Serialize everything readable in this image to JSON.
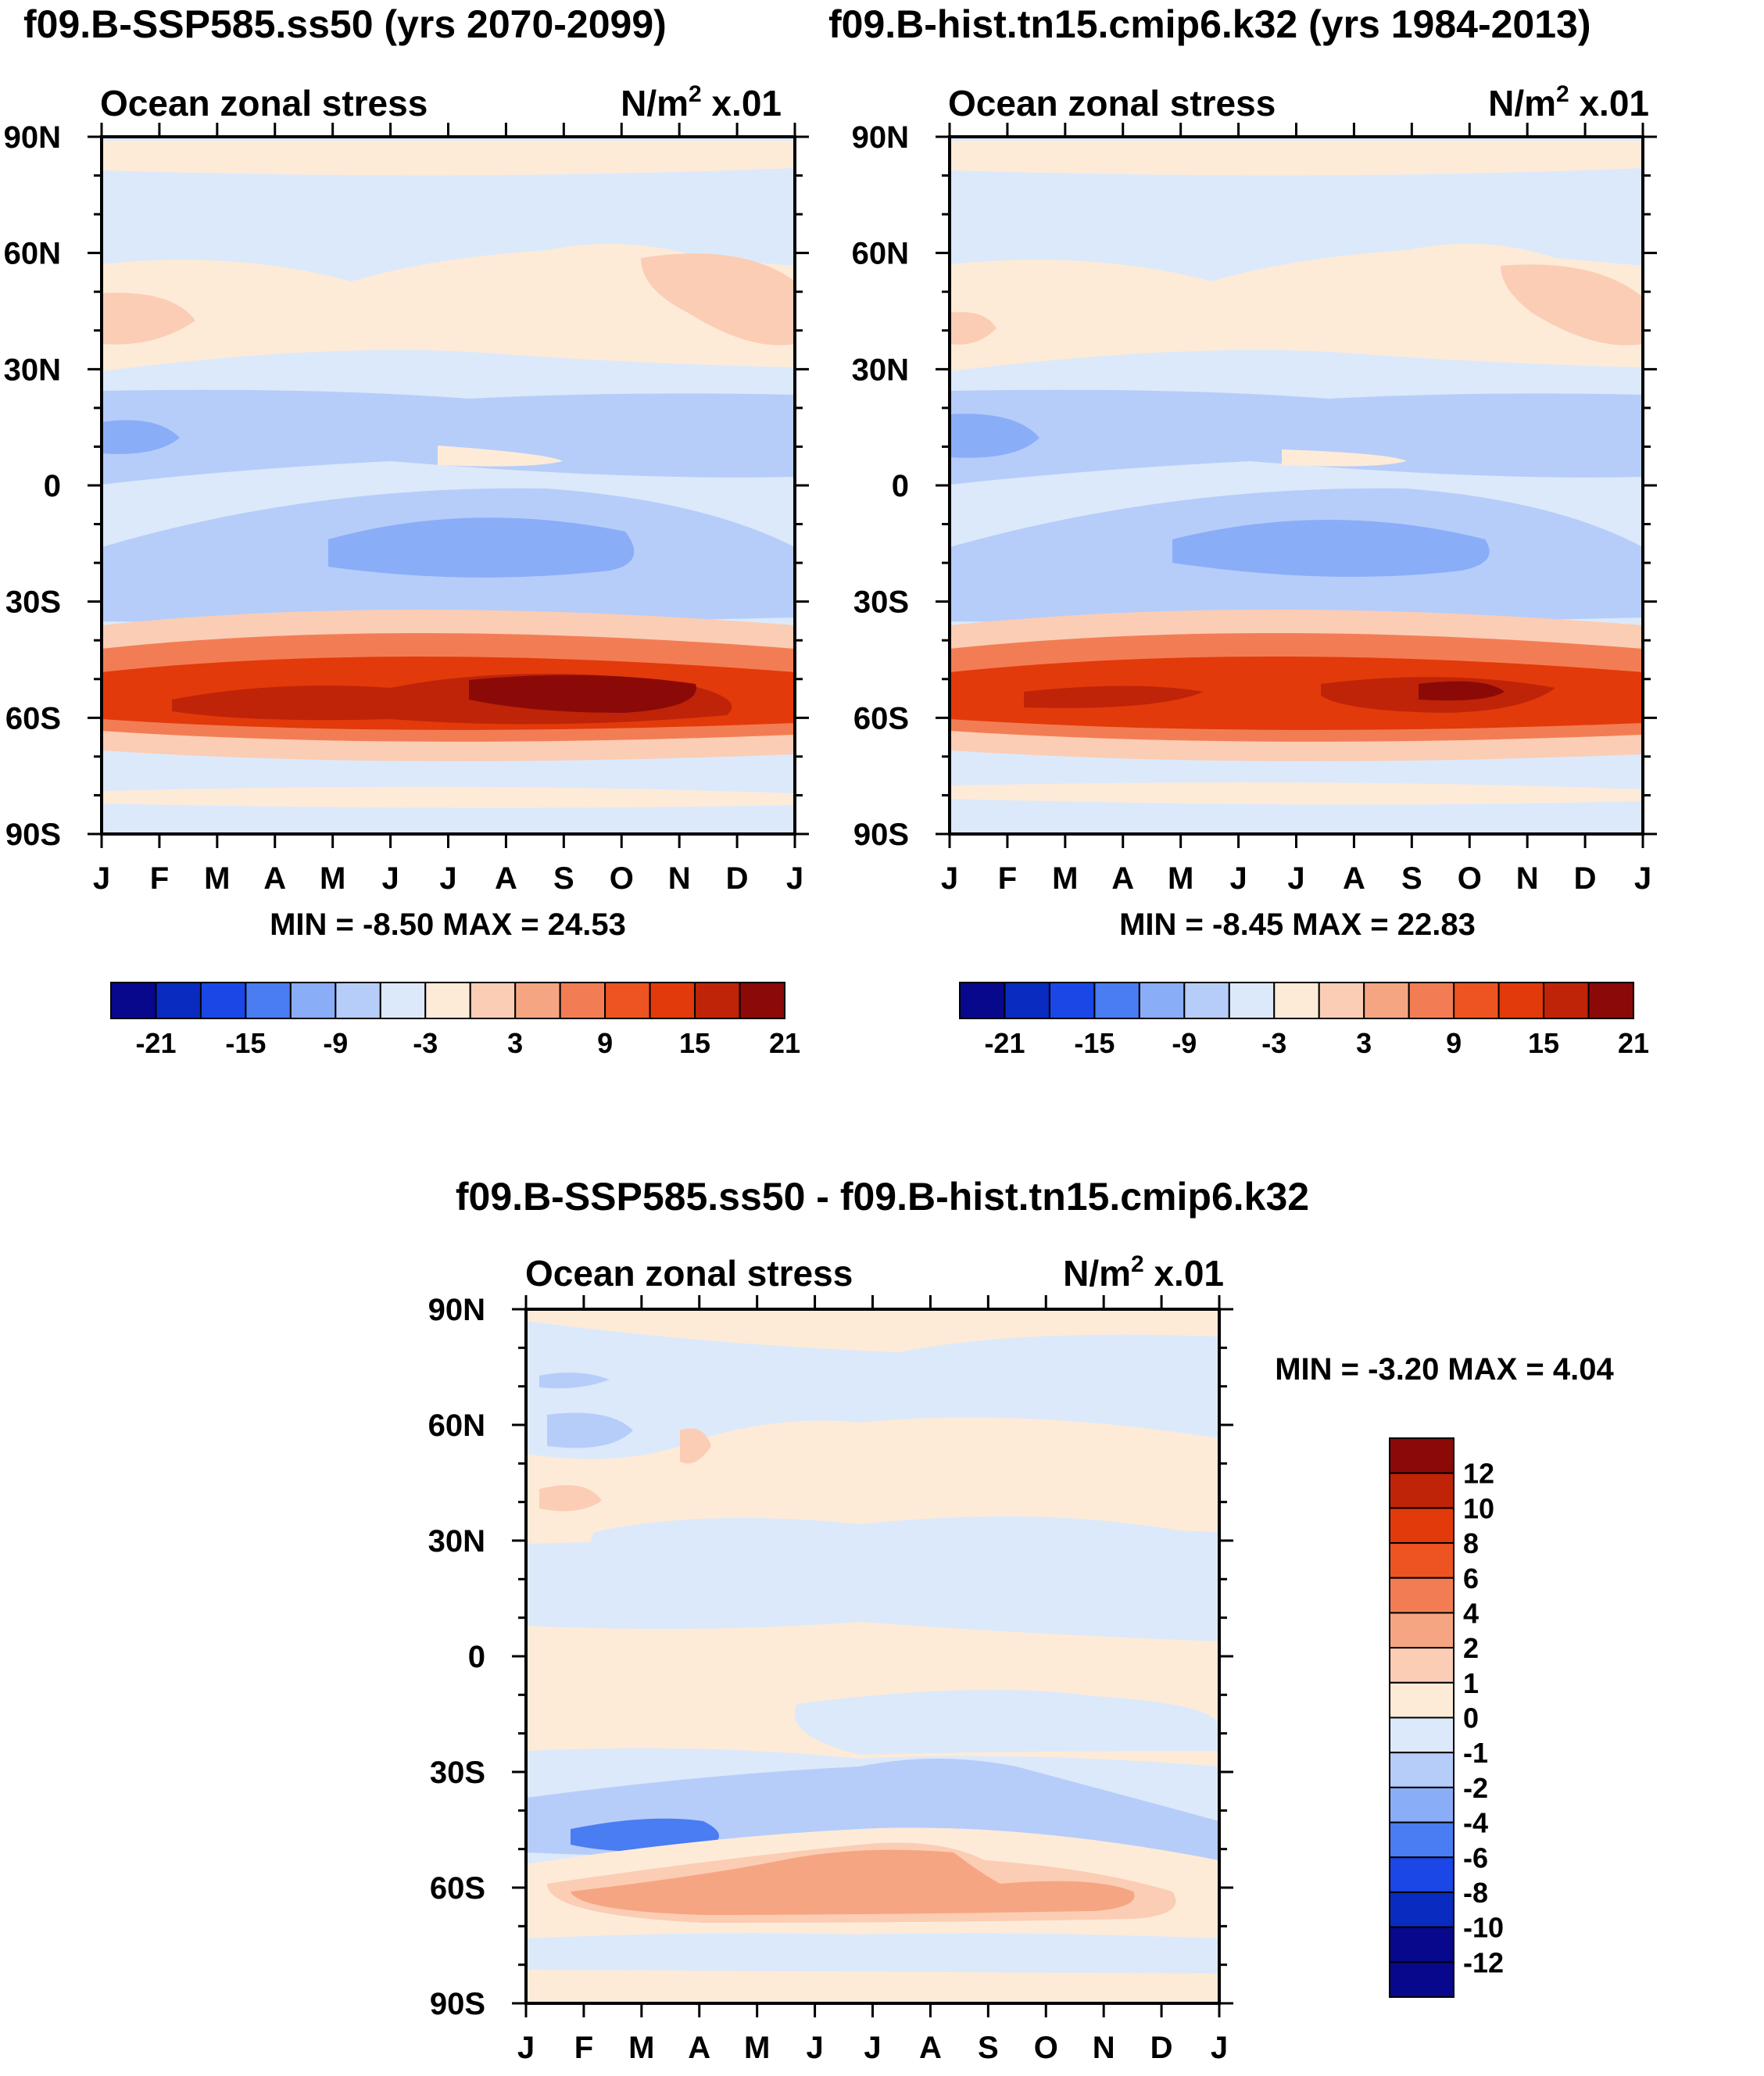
{
  "chart_data": [
    {
      "id": "panel_a",
      "type": "heatmap",
      "title": "f09.B-SSP585.ss50 (yrs 2070-2099)",
      "subtitle_left": "Ocean zonal stress",
      "units_text": "N/m",
      "units_sup": "2",
      "units_scale": "x.01",
      "x_labels": [
        "J",
        "F",
        "M",
        "A",
        "M",
        "J",
        "J",
        "A",
        "S",
        "O",
        "N",
        "D",
        "J"
      ],
      "y_labels": [
        "90N",
        "60N",
        "30N",
        "0",
        "30S",
        "60S",
        "90S"
      ],
      "y_values": [
        90,
        60,
        30,
        0,
        -30,
        -60,
        -90
      ],
      "ylim": [
        -90,
        90
      ],
      "min_max_text": "MIN =  -8.50 MAX =  24.53",
      "colorbar": {
        "orientation": "horizontal",
        "colors": [
          "#08088c",
          "#0a2bbf",
          "#1a47e6",
          "#4a7cf2",
          "#8aadf8",
          "#b6cdfa",
          "#dce9fb",
          "#fdebd8",
          "#fbcdb4",
          "#f6a583",
          "#f27d54",
          "#ee5322",
          "#e23a0b",
          "#bf2408",
          "#8b0a08"
        ],
        "tick_labels": [
          "-21",
          "-15",
          "-9",
          "-3",
          "3",
          "9",
          "15",
          "21"
        ]
      },
      "bands": [
        {
          "lat": 80,
          "level": 5
        },
        {
          "lat": 50,
          "level": 7
        },
        {
          "lat": 40,
          "level": 8
        },
        {
          "lat": 25,
          "level": 6
        },
        {
          "lat": 12,
          "level": 5
        },
        {
          "lat": 5,
          "level": 6
        },
        {
          "lat": -5,
          "level": 5
        },
        {
          "lat": -15,
          "level": 4
        },
        {
          "lat": -25,
          "level": 5
        },
        {
          "lat": -42,
          "level": 9
        },
        {
          "lat": -50,
          "level": 11
        },
        {
          "lat": -56,
          "level": 13
        },
        {
          "lat": -66,
          "level": 8
        },
        {
          "lat": -80,
          "level": 6
        }
      ]
    },
    {
      "id": "panel_b",
      "type": "heatmap",
      "title": "f09.B-hist.tn15.cmip6.k32 (yrs 1984-2013)",
      "subtitle_left": "Ocean zonal stress",
      "units_text": "N/m",
      "units_sup": "2",
      "units_scale": "x.01",
      "x_labels": [
        "J",
        "F",
        "M",
        "A",
        "M",
        "J",
        "J",
        "A",
        "S",
        "O",
        "N",
        "D",
        "J"
      ],
      "y_labels": [
        "90N",
        "60N",
        "30N",
        "0",
        "30S",
        "60S",
        "90S"
      ],
      "y_values": [
        90,
        60,
        30,
        0,
        -30,
        -60,
        -90
      ],
      "ylim": [
        -90,
        90
      ],
      "min_max_text": "MIN =  -8.45 MAX =  22.83",
      "colorbar": {
        "orientation": "horizontal",
        "colors": [
          "#08088c",
          "#0a2bbf",
          "#1a47e6",
          "#4a7cf2",
          "#8aadf8",
          "#b6cdfa",
          "#dce9fb",
          "#fdebd8",
          "#fbcdb4",
          "#f6a583",
          "#f27d54",
          "#ee5322",
          "#e23a0b",
          "#bf2408",
          "#8b0a08"
        ],
        "tick_labels": [
          "-21",
          "-15",
          "-9",
          "-3",
          "3",
          "9",
          "15",
          "21"
        ]
      },
      "bands": [
        {
          "lat": 80,
          "level": 6
        },
        {
          "lat": 50,
          "level": 7
        },
        {
          "lat": 40,
          "level": 8
        },
        {
          "lat": 25,
          "level": 6
        },
        {
          "lat": 12,
          "level": 5
        },
        {
          "lat": 5,
          "level": 6
        },
        {
          "lat": -5,
          "level": 5
        },
        {
          "lat": -15,
          "level": 4
        },
        {
          "lat": -25,
          "level": 5
        },
        {
          "lat": -42,
          "level": 9
        },
        {
          "lat": -50,
          "level": 11
        },
        {
          "lat": -56,
          "level": 12
        },
        {
          "lat": -66,
          "level": 8
        },
        {
          "lat": -80,
          "level": 6
        }
      ]
    },
    {
      "id": "panel_diff",
      "type": "heatmap",
      "title": "f09.B-SSP585.ss50 - f09.B-hist.tn15.cmip6.k32",
      "subtitle_left": "Ocean zonal stress",
      "units_text": "N/m",
      "units_sup": "2",
      "units_scale": "x.01",
      "x_labels": [
        "J",
        "F",
        "M",
        "A",
        "M",
        "J",
        "J",
        "A",
        "S",
        "O",
        "N",
        "D",
        "J"
      ],
      "y_labels": [
        "90N",
        "60N",
        "30N",
        "0",
        "30S",
        "60S",
        "90S"
      ],
      "y_values": [
        90,
        60,
        30,
        0,
        -30,
        -60,
        -90
      ],
      "ylim": [
        -90,
        90
      ],
      "min_max_text": "MIN =  -3.20 MAX =   4.04",
      "colorbar": {
        "orientation": "vertical",
        "colors_top_to_bottom": [
          "#8b0a08",
          "#bf2408",
          "#e23a0b",
          "#ee5322",
          "#f27d54",
          "#f6a583",
          "#fbcdb4",
          "#fdebd8",
          "#dce9fb",
          "#b6cdfa",
          "#8aadf8",
          "#4a7cf2",
          "#1a47e6",
          "#0a2bbf",
          "#08088c",
          "#08088c"
        ],
        "tick_labels": [
          "12",
          "10",
          "8",
          "6",
          "4",
          "2",
          "1",
          "0",
          "-1",
          "-2",
          "-4",
          "-6",
          "-8",
          "-10",
          "-12"
        ]
      },
      "bands": [
        {
          "lat": 80,
          "level": 8
        },
        {
          "lat": 60,
          "level": 9
        },
        {
          "lat": 42,
          "level": 7
        },
        {
          "lat": 30,
          "level": 8
        },
        {
          "lat": 18,
          "level": 7
        },
        {
          "lat": 5,
          "level": 7
        },
        {
          "lat": -8,
          "level": 8
        },
        {
          "lat": -25,
          "level": 7
        },
        {
          "lat": -42,
          "level": 9
        },
        {
          "lat": -48,
          "level": 6
        },
        {
          "lat": -58,
          "level": 5
        },
        {
          "lat": -62,
          "level": 4
        },
        {
          "lat": -72,
          "level": 7
        },
        {
          "lat": -82,
          "level": 8
        }
      ]
    }
  ]
}
